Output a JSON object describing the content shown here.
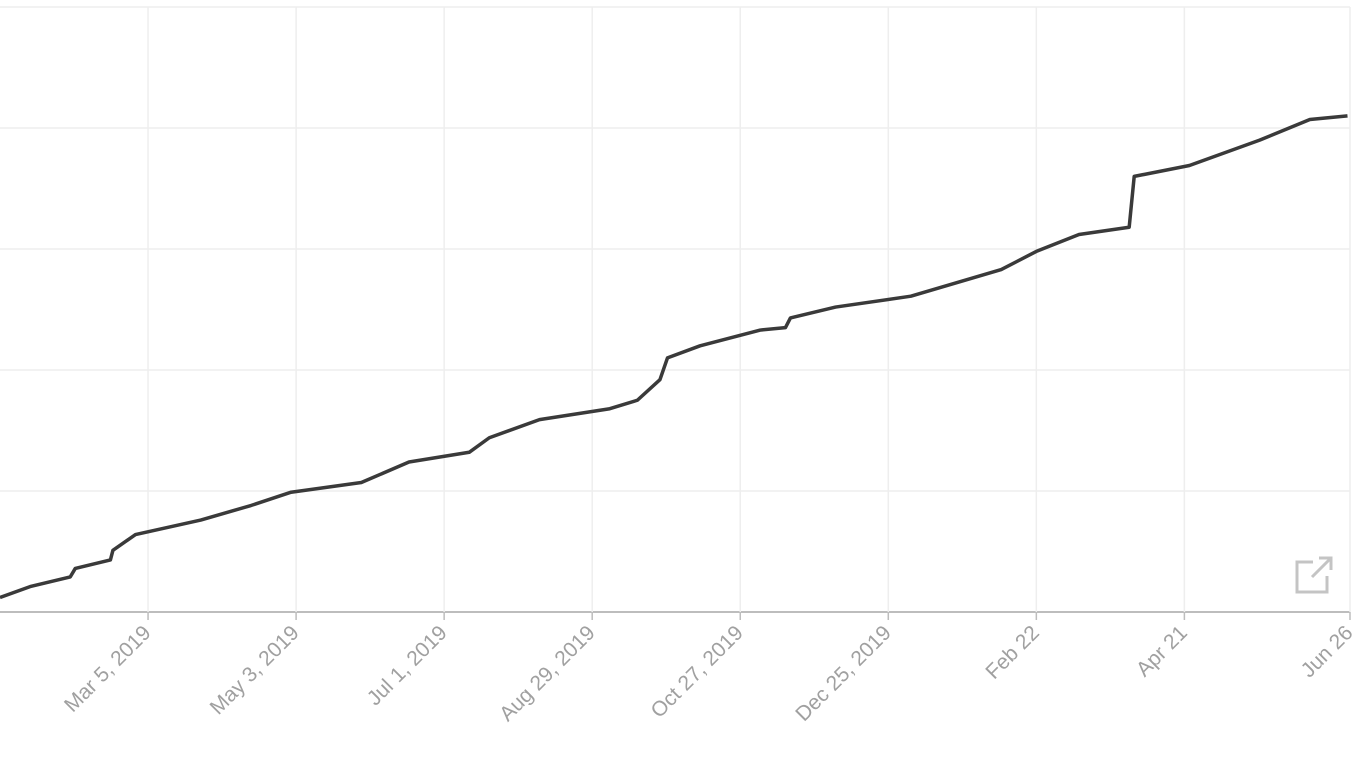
{
  "chart_data": {
    "type": "line",
    "x": [
      "2019-01-05",
      "2019-01-17",
      "2019-02-02",
      "2019-02-04",
      "2019-02-18",
      "2019-02-19",
      "2019-02-28",
      "2019-03-26",
      "2019-04-15",
      "2019-05-01",
      "2019-05-29",
      "2019-06-17",
      "2019-07-11",
      "2019-07-19",
      "2019-08-08",
      "2019-09-05",
      "2019-09-16",
      "2019-09-25",
      "2019-09-28",
      "2019-10-11",
      "2019-11-04",
      "2019-11-14",
      "2019-11-16",
      "2019-12-04",
      "2020-01-03",
      "2020-02-08",
      "2020-02-22",
      "2020-03-10",
      "2020-03-30",
      "2020-04-01",
      "2020-04-23",
      "2020-05-21",
      "2020-06-10",
      "2020-06-25"
    ],
    "series": [
      {
        "color": "#3a3a3a",
        "values": [
          0.12,
          0.21,
          0.29,
          0.36,
          0.43,
          0.51,
          0.64,
          0.76,
          0.88,
          0.99,
          1.07,
          1.24,
          1.32,
          1.44,
          1.59,
          1.68,
          1.75,
          1.92,
          2.1,
          2.2,
          2.33,
          2.35,
          2.43,
          2.52,
          2.61,
          2.83,
          2.98,
          3.12,
          3.18,
          3.6,
          3.69,
          3.9,
          4.07,
          4.1
        ]
      }
    ],
    "xlim": [
      "2019-01-05",
      "2020-06-26"
    ],
    "xticks": [
      {
        "value": "2019-03-05",
        "label": "Mar 5, 2019"
      },
      {
        "value": "2019-05-03",
        "label": "May 3, 2019"
      },
      {
        "value": "2019-07-01",
        "label": "Jul 1, 2019"
      },
      {
        "value": "2019-08-29",
        "label": "Aug 29, 2019"
      },
      {
        "value": "2019-10-27",
        "label": "Oct 27, 2019"
      },
      {
        "value": "2019-12-25",
        "label": "Dec 25, 2019"
      },
      {
        "value": "2020-02-22",
        "label": "Feb 22"
      },
      {
        "value": "2020-04-21",
        "label": "Apr 21"
      },
      {
        "value": "2020-06-26",
        "label": "Jun 26"
      }
    ],
    "ylim": [
      0,
      5
    ],
    "yticks": [
      0,
      1,
      2,
      3,
      4,
      5
    ],
    "grid": true
  }
}
